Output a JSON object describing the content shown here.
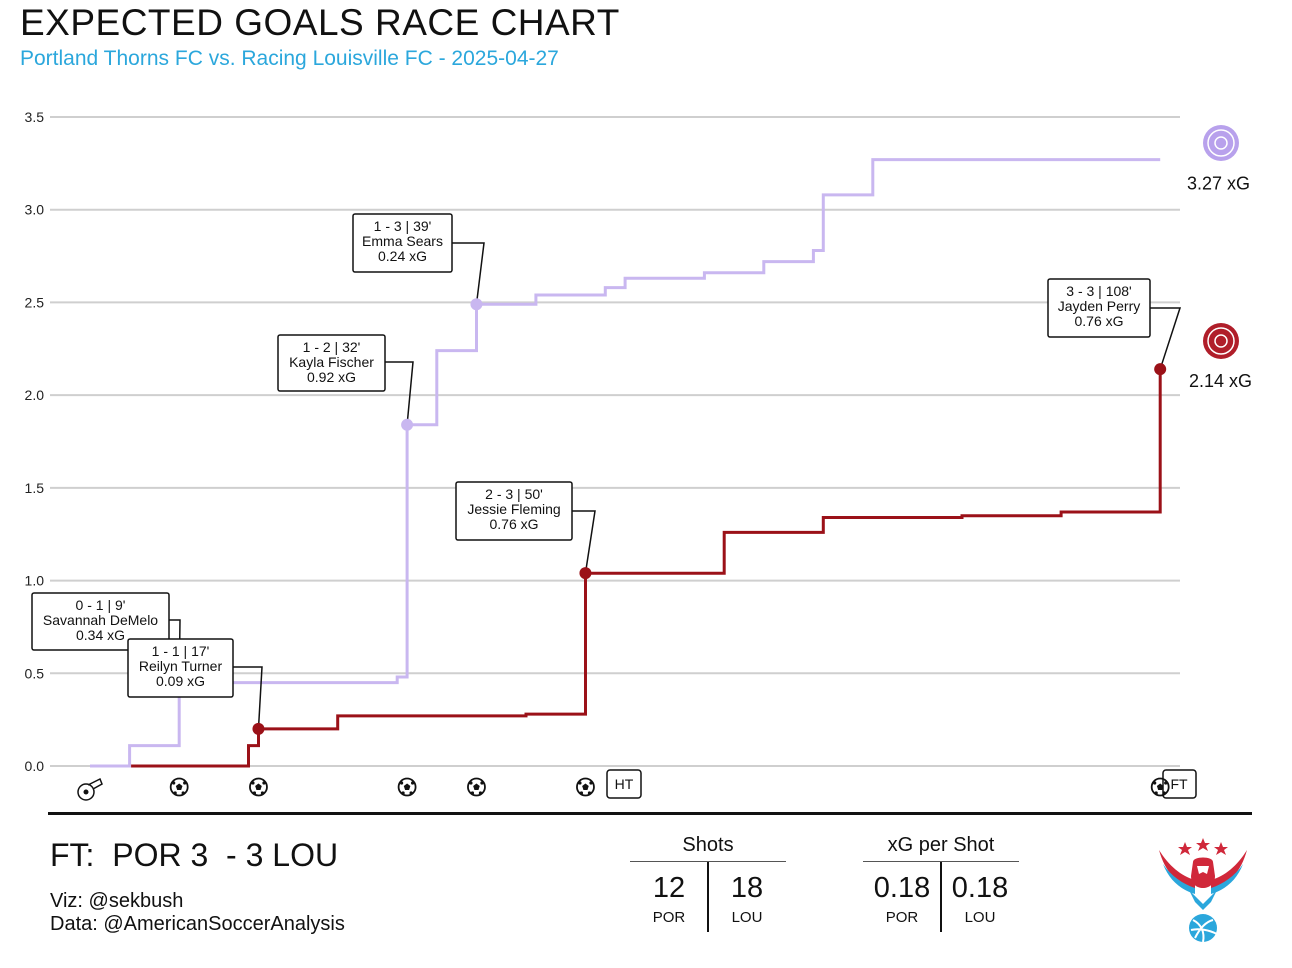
{
  "title": "EXPECTED GOALS RACE CHART",
  "subtitle": "Portland Thorns FC vs. Racing Louisville FC - 2025-04-27",
  "colors": {
    "por": "#9b1118",
    "lou": "#c9b7f0",
    "subtitle": "#2ba7dc",
    "grid": "#cccccc"
  },
  "chart_data": {
    "type": "line",
    "step": true,
    "grid": true,
    "ylim": [
      0,
      3.5
    ],
    "xlim": [
      0,
      110
    ],
    "y_ticks": [
      "0.0",
      "0.5",
      "1.0",
      "1.5",
      "2.0",
      "2.5",
      "3.0",
      "3.5"
    ],
    "series": [
      {
        "name": "POR",
        "color": "#9b1118",
        "end_label": "2.14 xG",
        "points": [
          [
            0,
            0
          ],
          [
            8,
            0
          ],
          [
            16,
            0
          ],
          [
            16,
            0.11
          ],
          [
            17,
            0.11
          ],
          [
            17,
            0.2
          ],
          [
            25,
            0.2
          ],
          [
            25,
            0.27
          ],
          [
            44,
            0.27
          ],
          [
            44,
            0.28
          ],
          [
            50,
            0.28
          ],
          [
            50,
            1.04
          ],
          [
            64,
            1.04
          ],
          [
            64,
            1.26
          ],
          [
            74,
            1.26
          ],
          [
            74,
            1.34
          ],
          [
            88,
            1.34
          ],
          [
            88,
            1.35
          ],
          [
            98,
            1.35
          ],
          [
            98,
            1.37
          ],
          [
            108,
            1.37
          ],
          [
            108,
            2.14
          ],
          [
            108,
            2.14
          ]
        ]
      },
      {
        "name": "LOU",
        "color": "#c9b7f0",
        "end_label": "3.27 xG",
        "points": [
          [
            0,
            0
          ],
          [
            4,
            0
          ],
          [
            4,
            0.11
          ],
          [
            9,
            0.11
          ],
          [
            9,
            0.45
          ],
          [
            31,
            0.45
          ],
          [
            31,
            0.48
          ],
          [
            32,
            0.48
          ],
          [
            32,
            1.84
          ],
          [
            35,
            1.84
          ],
          [
            35,
            2.24
          ],
          [
            39,
            2.24
          ],
          [
            39,
            2.49
          ],
          [
            45,
            2.49
          ],
          [
            45,
            2.54
          ],
          [
            52,
            2.54
          ],
          [
            52,
            2.58
          ],
          [
            54,
            2.58
          ],
          [
            54,
            2.63
          ],
          [
            62,
            2.63
          ],
          [
            62,
            2.66
          ],
          [
            68,
            2.66
          ],
          [
            68,
            2.72
          ],
          [
            73,
            2.72
          ],
          [
            73,
            2.78
          ],
          [
            74,
            2.78
          ],
          [
            74,
            3.08
          ],
          [
            79,
            3.08
          ],
          [
            79,
            3.27
          ],
          [
            108,
            3.27
          ]
        ]
      }
    ],
    "annotations": [
      {
        "score": "0 - 1",
        "minute": "9'",
        "player": "Savannah DeMelo",
        "xg": "0.34 xG",
        "team": "LOU",
        "x": 9,
        "y": 0.45
      },
      {
        "score": "1 - 1",
        "minute": "17'",
        "player": "Reilyn Turner",
        "xg": "0.09 xG",
        "team": "POR",
        "x": 17,
        "y": 0.2
      },
      {
        "score": "1 - 2",
        "minute": "32'",
        "player": "Kayla Fischer",
        "xg": "0.92 xG",
        "team": "LOU",
        "x": 32,
        "y": 1.84
      },
      {
        "score": "1 - 3",
        "minute": "39'",
        "player": "Emma Sears",
        "xg": "0.24 xG",
        "team": "LOU",
        "x": 39,
        "y": 2.49
      },
      {
        "score": "2 - 3",
        "minute": "50'",
        "player": "Jessie Fleming",
        "xg": "0.76 xG",
        "team": "POR",
        "x": 50,
        "y": 1.04
      },
      {
        "score": "3 - 3",
        "minute": "108'",
        "player": "Jayden Perry",
        "xg": "0.76 xG",
        "team": "POR",
        "x": 108,
        "y": 2.14
      }
    ],
    "goal_minutes": [
      17,
      9,
      32,
      39,
      50,
      108
    ],
    "event_labels": {
      "half_time": "HT",
      "full_time": "FT"
    }
  },
  "footer": {
    "score_line": "FT:  POR 3  - 3 LOU",
    "viz_credit": "Viz: @sekbush",
    "data_credit": "Data: @AmericanSoccerAnalysis",
    "shots": {
      "header": "Shots",
      "por_value": "12",
      "lou_value": "18",
      "por_label": "POR",
      "lou_label": "LOU"
    },
    "xg_per_shot": {
      "header": "xG per Shot",
      "por_value": "0.18",
      "lou_value": "0.18",
      "por_label": "POR",
      "lou_label": "LOU"
    }
  }
}
